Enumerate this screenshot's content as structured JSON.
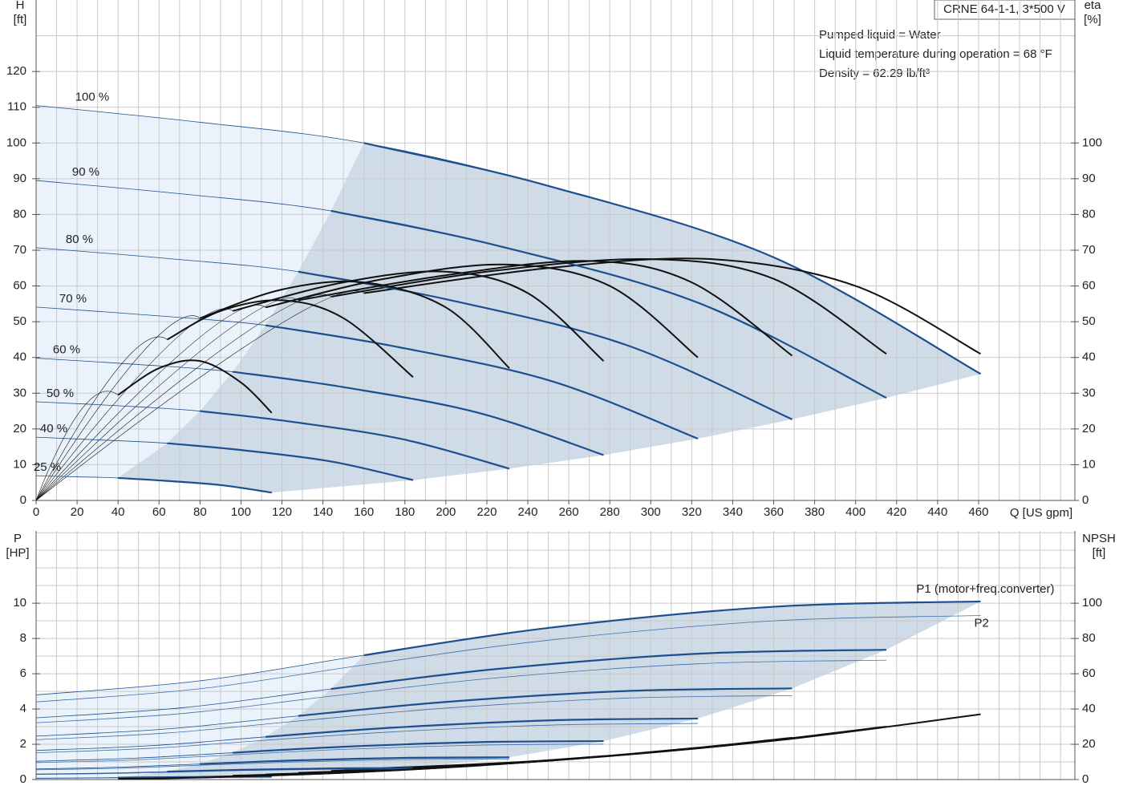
{
  "header": {
    "model": "CRNE 64-1-1, 3*500 V",
    "info": [
      "Pumped liquid = Water",
      "Liquid temperature during operation = 68 °F",
      "Density = 62.29 lb/ft³"
    ]
  },
  "chart_data": [
    {
      "type": "line",
      "y_label": [
        "H",
        "[ft]"
      ],
      "y2_label": [
        "eta",
        "[%]"
      ],
      "x_label": "Q [US gpm]",
      "xlim": [
        0,
        507
      ],
      "xticks": [
        0,
        20,
        40,
        60,
        80,
        100,
        120,
        140,
        160,
        180,
        200,
        220,
        240,
        260,
        280,
        300,
        320,
        340,
        360,
        380,
        400,
        420,
        440,
        460
      ],
      "xgrid": [
        10,
        20,
        30,
        40,
        50,
        60,
        70,
        80,
        90,
        100,
        110,
        120,
        130,
        140,
        150,
        160,
        170,
        180,
        190,
        200,
        210,
        220,
        230,
        240,
        250,
        260,
        270,
        280,
        290,
        300,
        310,
        320,
        330,
        340,
        350,
        360,
        370,
        380,
        390,
        400,
        410,
        420,
        430,
        440,
        450,
        460,
        470,
        480,
        490,
        500
      ],
      "ylim": [
        0,
        140
      ],
      "yticks": [
        0,
        10,
        20,
        30,
        40,
        50,
        60,
        70,
        80,
        90,
        100,
        110,
        120
      ],
      "ygrid": [
        10,
        20,
        30,
        40,
        50,
        60,
        70,
        80,
        90,
        100,
        110,
        120,
        130
      ],
      "y2lim": [
        0,
        140
      ],
      "y2ticks": [
        0,
        10,
        20,
        30,
        40,
        50,
        60,
        70,
        80,
        90,
        100
      ],
      "color": "#1d4f8e",
      "eta_color": "#111111",
      "light_fill": "#eaf3fb",
      "dark_fill": "#cfdbe7",
      "series": [
        {
          "name": "100 %",
          "q": [
            0,
            80,
            160,
            250,
            360,
            461
          ],
          "h": [
            110.5,
            105.8,
            100,
            88,
            68,
            35.4
          ],
          "eta_q": [
            160,
            250,
            330,
            400,
            461
          ],
          "eta": [
            58,
            65,
            67.5,
            60,
            41
          ]
        },
        {
          "name": "90 %",
          "q": [
            0,
            72,
            144,
            225,
            324,
            415
          ],
          "h": [
            89.5,
            85.7,
            81,
            71.3,
            55.1,
            28.7
          ],
          "eta_q": [
            144,
            220,
            300,
            360,
            415
          ],
          "eta": [
            57,
            64,
            67.5,
            62,
            41
          ]
        },
        {
          "name": "80 %",
          "q": [
            0,
            64,
            128,
            200,
            288,
            369
          ],
          "h": [
            70.7,
            67.7,
            64,
            56.3,
            43.5,
            22.7
          ],
          "eta_q": [
            128,
            200,
            270,
            320,
            369
          ],
          "eta": [
            56,
            63,
            67,
            61,
            40.5
          ]
        },
        {
          "name": "70 %",
          "q": [
            0,
            56,
            112,
            175,
            252,
            323
          ],
          "h": [
            54.1,
            51.8,
            49,
            43.1,
            33.3,
            17.3
          ],
          "eta_q": [
            112,
            170,
            230,
            280,
            323
          ],
          "eta": [
            54,
            62,
            66,
            60,
            40
          ]
        },
        {
          "name": "60 %",
          "q": [
            0,
            48,
            96,
            150,
            216,
            277
          ],
          "h": [
            39.8,
            38.1,
            36,
            31.7,
            24.5,
            12.7
          ],
          "eta_q": [
            96,
            150,
            200,
            240,
            277
          ],
          "eta": [
            53,
            61,
            64,
            58,
            39
          ]
        },
        {
          "name": "50 %",
          "q": [
            0,
            40,
            80,
            125,
            180,
            231
          ],
          "h": [
            27.6,
            26.5,
            25,
            22,
            17,
            8.9
          ],
          "eta_q": [
            80,
            120,
            160,
            200,
            231
          ],
          "eta": [
            51,
            59,
            61,
            54,
            37
          ]
        },
        {
          "name": "40 %",
          "q": [
            0,
            32,
            64,
            100,
            144,
            184
          ],
          "h": [
            17.7,
            16.9,
            16,
            14.1,
            10.9,
            5.7
          ],
          "eta_q": [
            64,
            90,
            120,
            150,
            184
          ],
          "eta": [
            45,
            53,
            56,
            51,
            34.5
          ]
        },
        {
          "name": "25 %",
          "q": [
            0,
            20,
            40,
            63,
            90,
            115
          ],
          "h": [
            6.9,
            6.6,
            6.3,
            5.5,
            4.3,
            2.2
          ],
          "eta_q": [
            40,
            60,
            80,
            100,
            115
          ],
          "eta": [
            29.5,
            37,
            39,
            33,
            24.5
          ]
        }
      ]
    },
    {
      "type": "line",
      "y_label": [
        "P",
        "[HP]"
      ],
      "y2_label": [
        "NPSH",
        "[ft]"
      ],
      "xlim": [
        0,
        507
      ],
      "ylim": [
        0,
        14.1
      ],
      "yticks": [
        0,
        2,
        4,
        6,
        8,
        10
      ],
      "ygrid": [
        1,
        2,
        3,
        4,
        5,
        6,
        7,
        8,
        9,
        10,
        11,
        12,
        13,
        14
      ],
      "y2lim": [
        0,
        141
      ],
      "y2ticks": [
        0,
        20,
        40,
        60,
        80,
        100
      ],
      "p1_label": "P1 (motor+freq.converter)",
      "p2_label": "P2",
      "p1_color": "#1d4f8e",
      "p2_color": "#3f6fa8",
      "npsh_color": "#111111",
      "series": [
        {
          "p1": [
            4.8,
            5.6,
            7.05,
            8.6,
            9.8,
            10.1
          ],
          "p2": [
            4.4,
            5.15,
            6.5,
            7.9,
            9.0,
            9.3
          ],
          "npsh": [
            6,
            11,
            22,
            37
          ]
        },
        {
          "p1": [
            3.5,
            4.08,
            5.14,
            6.27,
            7.14,
            7.36
          ],
          "p2": [
            3.22,
            3.75,
            4.73,
            5.77,
            6.57,
            6.77
          ],
          "npsh": [
            4.9,
            8.9,
            17.8,
            30
          ]
        },
        {
          "p1": [
            2.46,
            2.87,
            3.61,
            4.4,
            5.02,
            5.17
          ],
          "p2": [
            2.26,
            2.64,
            3.32,
            4.05,
            4.62,
            4.76
          ],
          "npsh": [
            3.8,
            7,
            14.1,
            23.7
          ]
        },
        {
          "p1": [
            1.65,
            1.92,
            2.42,
            2.95,
            3.36,
            3.46
          ],
          "p2": [
            1.52,
            1.77,
            2.23,
            2.71,
            3.09,
            3.18
          ],
          "npsh": [
            2.9,
            5.4,
            10.8,
            18.1
          ]
        },
        {
          "p1": [
            1.04,
            1.21,
            1.52,
            1.86,
            2.12,
            2.18
          ],
          "p2": [
            0.96,
            1.11,
            1.4,
            1.71,
            1.95,
            2.01
          ],
          "npsh": [
            2.2,
            4,
            7.9,
            13.3
          ]
        },
        {
          "p1": [
            0.6,
            0.7,
            0.88,
            1.08,
            1.23,
            1.26
          ],
          "p2": [
            0.55,
            0.64,
            0.81,
            0.99,
            1.13,
            1.16
          ],
          "npsh": [
            1.5,
            2.8,
            5.5,
            9.3
          ]
        },
        {
          "p1": [
            0.31,
            0.36,
            0.45,
            0.55,
            0.63,
            0.65
          ],
          "p2": [
            0.29,
            0.33,
            0.41,
            0.51,
            0.58,
            0.6
          ],
          "npsh": [
            1,
            1.8,
            3.5,
            5.9
          ]
        },
        {
          "p1": [
            0.08,
            0.09,
            0.11,
            0.13,
            0.15,
            0.16
          ],
          "p2": [
            0.07,
            0.08,
            0.1,
            0.12,
            0.14,
            0.15
          ],
          "npsh": [
            0.4,
            0.7,
            1.4,
            2.3
          ]
        }
      ]
    }
  ]
}
